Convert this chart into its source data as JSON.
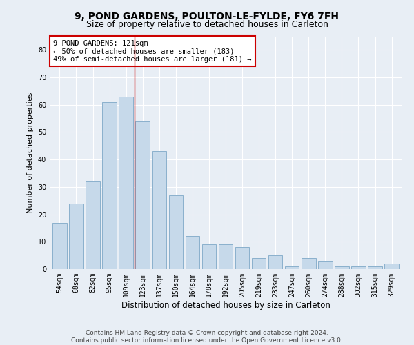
{
  "title1": "9, POND GARDENS, POULTON-LE-FYLDE, FY6 7FH",
  "title2": "Size of property relative to detached houses in Carleton",
  "xlabel": "Distribution of detached houses by size in Carleton",
  "ylabel": "Number of detached properties",
  "categories": [
    "54sqm",
    "68sqm",
    "82sqm",
    "95sqm",
    "109sqm",
    "123sqm",
    "137sqm",
    "150sqm",
    "164sqm",
    "178sqm",
    "192sqm",
    "205sqm",
    "219sqm",
    "233sqm",
    "247sqm",
    "260sqm",
    "274sqm",
    "288sqm",
    "302sqm",
    "315sqm",
    "329sqm"
  ],
  "values": [
    17,
    24,
    32,
    61,
    63,
    54,
    43,
    27,
    12,
    9,
    9,
    8,
    4,
    5,
    1,
    4,
    3,
    1,
    1,
    1,
    2
  ],
  "bar_color": "#c6d9ea",
  "bar_edge_color": "#8ab0cc",
  "vline_x_index": 5,
  "vline_color": "#cc0000",
  "annotation_line1": "9 POND GARDENS: 121sqm",
  "annotation_line2": "← 50% of detached houses are smaller (183)",
  "annotation_line3": "49% of semi-detached houses are larger (181) →",
  "annotation_box_color": "#cc0000",
  "annotation_box_bg": "#ffffff",
  "ylim": [
    0,
    85
  ],
  "yticks": [
    0,
    10,
    20,
    30,
    40,
    50,
    60,
    70,
    80
  ],
  "footer1": "Contains HM Land Registry data © Crown copyright and database right 2024.",
  "footer2": "Contains public sector information licensed under the Open Government Licence v3.0.",
  "bg_color": "#e8eef5",
  "plot_bg_color": "#e8eef5",
  "grid_color": "#ffffff",
  "title1_fontsize": 10,
  "title2_fontsize": 9,
  "xlabel_fontsize": 8.5,
  "ylabel_fontsize": 8,
  "tick_fontsize": 7,
  "footer_fontsize": 6.5,
  "annotation_fontsize": 7.5
}
